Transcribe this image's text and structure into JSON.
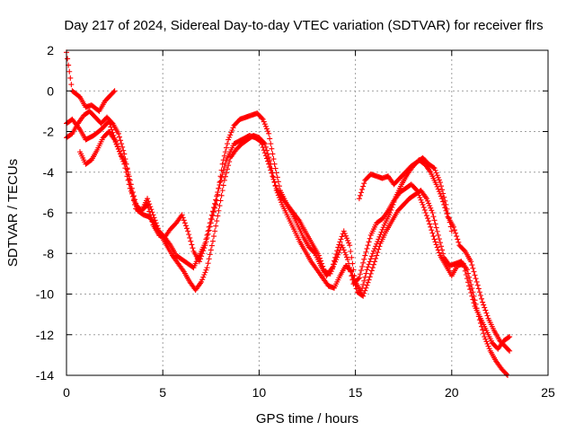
{
  "chart_data": {
    "type": "scatter",
    "title": "Day 217 of 2024, Sidereal Day-to-day VTEC variation (SDTVAR) for receiver flrs",
    "xlabel": "GPS time / hours",
    "ylabel": "SDTVAR / TECUs",
    "xlim": [
      0,
      25
    ],
    "ylim": [
      -14,
      2
    ],
    "xticks": [
      0,
      5,
      10,
      15,
      20,
      25
    ],
    "yticks": [
      2,
      0,
      -2,
      -4,
      -6,
      -8,
      -10,
      -12,
      -14
    ],
    "grid": true,
    "marker": "plus",
    "series": [
      {
        "name": "track-1",
        "color": "#ff0000",
        "x": [
          0,
          0.3,
          0.7,
          1.0,
          1.3,
          1.7,
          2.0,
          2.3,
          2.5
        ],
        "y": [
          1.9,
          0.0,
          -0.3,
          -0.8,
          -0.7,
          -1.0,
          -0.5,
          -0.2,
          0.0
        ]
      },
      {
        "name": "track-2",
        "color": "#ff0000",
        "x": [
          0,
          0.3,
          0.7,
          1.0,
          1.4,
          1.8,
          2.2,
          2.6,
          3.0,
          3.3,
          3.6,
          3.9,
          4.2,
          4.5,
          4.8,
          5.1,
          5.4,
          5.7,
          6.0,
          6.3,
          6.6,
          6.9,
          7.2,
          7.5,
          7.9,
          8.3,
          8.7,
          9.1,
          9.5,
          9.8,
          10.1,
          10.5,
          10.9,
          11.3,
          11.7,
          12.1,
          12.5,
          12.8,
          13.1,
          13.4,
          13.7,
          14.0,
          14.3,
          14.6,
          14.9,
          15.2,
          15.5,
          15.8,
          16.1,
          16.4,
          16.7,
          17.0,
          17.3,
          17.6,
          17.9,
          18.2,
          18.5,
          18.8,
          19.1,
          19.4,
          19.7,
          20.0,
          20.3,
          20.6,
          20.9,
          21.2,
          21.5,
          21.8,
          22.1,
          22.4,
          22.7,
          23.0
        ],
        "y": [
          -1.6,
          -1.4,
          -1.9,
          -2.4,
          -2.2,
          -1.9,
          -1.5,
          -2.6,
          -3.6,
          -4.8,
          -5.6,
          -5.9,
          -5.6,
          -6.6,
          -7.1,
          -7.2,
          -7.6,
          -8.1,
          -8.3,
          -8.5,
          -8.7,
          -8.1,
          -7.5,
          -6.3,
          -4.8,
          -3.4,
          -2.6,
          -2.4,
          -2.2,
          -2.3,
          -2.5,
          -3.6,
          -4.8,
          -5.4,
          -5.9,
          -6.4,
          -7.1,
          -7.6,
          -8.1,
          -8.9,
          -9.0,
          -8.3,
          -7.6,
          -8.3,
          -9.5,
          -9.2,
          -8.1,
          -7.1,
          -6.5,
          -6.3,
          -5.9,
          -5.4,
          -5.0,
          -4.8,
          -4.6,
          -4.9,
          -5.6,
          -6.4,
          -7.3,
          -8.1,
          -8.6,
          -9.1,
          -8.6,
          -8.5,
          -9.6,
          -10.6,
          -11.2,
          -11.8,
          -12.4,
          -12.7,
          -12.3,
          -12.1
        ]
      },
      {
        "name": "track-3",
        "color": "#ff0000",
        "x": [
          0,
          0.3,
          0.6,
          0.9,
          1.2,
          1.5,
          1.8,
          2.1,
          2.4,
          2.7,
          3.0,
          3.3,
          3.6,
          3.9,
          4.2,
          4.5,
          4.8,
          5.1,
          5.4,
          5.7,
          6.0,
          6.3,
          6.6,
          6.9,
          7.2,
          7.5,
          7.8,
          8.1,
          8.4,
          8.7,
          9.0,
          9.3,
          9.6,
          9.9,
          10.2,
          10.5,
          10.8,
          11.1,
          11.4,
          11.7,
          12.0,
          12.3,
          12.6,
          12.9,
          13.2,
          13.5,
          13.8,
          14.1,
          14.4,
          14.7,
          15.0,
          15.3,
          15.6,
          15.9,
          16.2,
          16.5,
          16.8,
          17.1,
          17.4,
          17.7,
          18.0,
          18.3,
          18.6,
          18.9,
          19.2,
          19.5,
          19.8,
          20.1,
          20.4,
          20.7,
          21.0,
          21.3,
          21.6,
          21.9,
          22.2,
          22.5,
          22.8,
          23.0
        ],
        "y": [
          -2.3,
          -2.1,
          -1.6,
          -1.2,
          -1.0,
          -1.3,
          -1.6,
          -1.3,
          -1.6,
          -2.1,
          -3.1,
          -4.6,
          -5.8,
          -5.9,
          -5.3,
          -6.1,
          -6.9,
          -7.2,
          -6.8,
          -6.5,
          -6.1,
          -6.9,
          -7.9,
          -8.4,
          -7.6,
          -6.5,
          -5.4,
          -3.6,
          -2.4,
          -1.7,
          -1.4,
          -1.3,
          -1.2,
          -1.1,
          -1.4,
          -2.1,
          -3.6,
          -4.9,
          -5.5,
          -6.0,
          -6.6,
          -7.2,
          -7.7,
          -8.0,
          -8.6,
          -9.1,
          -8.7,
          -7.7,
          -6.9,
          -7.6,
          -9.4,
          -9.9,
          -8.8,
          -8.0,
          -7.3,
          -6.6,
          -6.0,
          -5.2,
          -4.6,
          -4.1,
          -3.7,
          -3.4,
          -3.6,
          -4.0,
          -4.6,
          -5.3,
          -6.2,
          -6.7,
          -7.6,
          -7.9,
          -8.4,
          -9.4,
          -10.4,
          -11.2,
          -11.8,
          -12.3,
          -12.6,
          -12.8
        ]
      },
      {
        "name": "track-4",
        "color": "#ff0000",
        "x": [
          0.7,
          1.0,
          1.3,
          1.6,
          1.9,
          2.2,
          2.5,
          2.8,
          3.1,
          3.4,
          3.7,
          4.0,
          4.3,
          4.6,
          4.9,
          5.2,
          5.5,
          5.8,
          6.1,
          6.4,
          6.7,
          7.0,
          7.3,
          7.6,
          7.9,
          8.2,
          8.5,
          8.8,
          9.1,
          9.4,
          9.7,
          10.0,
          10.3,
          10.6,
          10.9,
          11.2,
          11.5,
          11.8,
          12.1,
          12.4,
          12.7,
          13.0,
          13.3,
          13.6,
          13.9,
          14.2,
          14.5,
          14.8,
          15.1,
          15.4,
          15.7,
          16.0,
          16.3,
          16.6,
          16.9,
          17.2,
          17.5,
          17.8,
          18.1,
          18.4,
          18.7,
          19.0,
          19.3,
          19.6,
          19.9,
          20.2,
          20.5,
          20.8,
          21.1,
          21.4,
          21.7,
          22.0,
          22.3,
          22.6,
          22.9
        ],
        "y": [
          -3.0,
          -3.6,
          -3.4,
          -2.9,
          -2.3,
          -2.0,
          -2.4,
          -3.1,
          -3.6,
          -4.8,
          -5.9,
          -6.1,
          -6.2,
          -6.6,
          -7.1,
          -7.6,
          -8.1,
          -8.5,
          -8.9,
          -9.4,
          -9.8,
          -9.4,
          -8.7,
          -7.4,
          -5.9,
          -4.4,
          -3.3,
          -2.9,
          -2.6,
          -2.4,
          -2.2,
          -2.3,
          -2.6,
          -3.6,
          -4.9,
          -5.6,
          -6.2,
          -6.8,
          -7.4,
          -7.9,
          -8.4,
          -8.8,
          -9.2,
          -9.6,
          -9.7,
          -9.1,
          -8.6,
          -8.9,
          -9.9,
          -10.1,
          -9.3,
          -8.4,
          -7.5,
          -6.9,
          -6.4,
          -5.9,
          -5.6,
          -5.3,
          -5.1,
          -4.9,
          -5.3,
          -6.0,
          -7.1,
          -8.2,
          -8.6,
          -8.5,
          -8.4,
          -8.8,
          -9.9,
          -11.1,
          -12.1,
          -12.8,
          -13.3,
          -13.7,
          -14.0
        ]
      },
      {
        "name": "track-5",
        "color": "#ff0000",
        "x": [
          15.2,
          15.5,
          15.8,
          16.1,
          16.4,
          16.7,
          17.0,
          17.3,
          17.6,
          17.9,
          18.2,
          18.5,
          18.8,
          19.1,
          19.4,
          19.7,
          20.0
        ],
        "y": [
          -5.3,
          -4.4,
          -4.1,
          -4.2,
          -4.3,
          -4.2,
          -4.6,
          -4.3,
          -4.0,
          -3.7,
          -3.5,
          -3.3,
          -3.6,
          -3.8,
          -4.5,
          -5.6,
          -6.9
        ]
      }
    ]
  }
}
